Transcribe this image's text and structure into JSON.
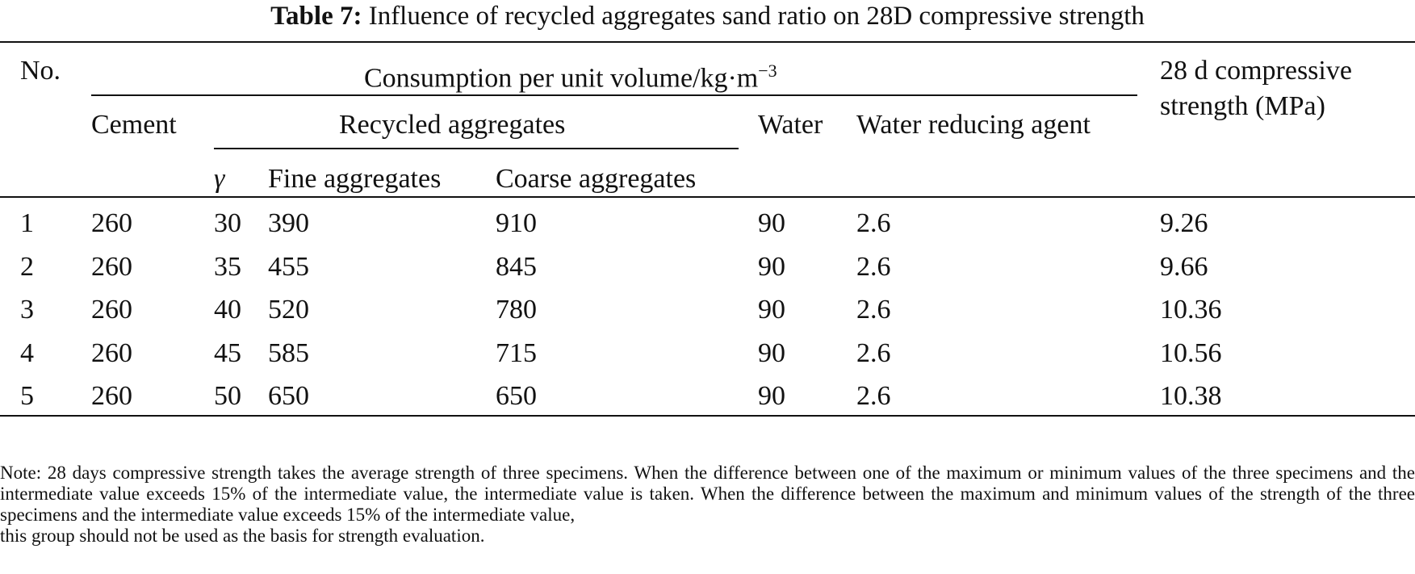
{
  "title": {
    "label": "Table 7:",
    "text": "Influence of recycled aggregates sand ratio on 28D compressive strength"
  },
  "headers": {
    "no": "No.",
    "consumption": "Consumption per unit volume/kg·m",
    "consumption_sup": "−3",
    "strength_line1": "28 d compressive",
    "strength_line2": "strength (MPa)",
    "cement": "Cement",
    "recycled": "Recycled aggregates",
    "water": "Water",
    "reducing": "Water reducing agent",
    "gamma": "γ",
    "fine": "Fine aggregates",
    "coarse": "Coarse aggregates"
  },
  "rows": [
    {
      "no": "1",
      "cement": "260",
      "gamma": "30",
      "fine": "390",
      "coarse": "910",
      "water": "90",
      "agent": "2.6",
      "strength": "9.26"
    },
    {
      "no": "2",
      "cement": "260",
      "gamma": "35",
      "fine": "455",
      "coarse": "845",
      "water": "90",
      "agent": "2.6",
      "strength": "9.66"
    },
    {
      "no": "3",
      "cement": "260",
      "gamma": "40",
      "fine": "520",
      "coarse": "780",
      "water": "90",
      "agent": "2.6",
      "strength": "10.36"
    },
    {
      "no": "4",
      "cement": "260",
      "gamma": "45",
      "fine": "585",
      "coarse": "715",
      "water": "90",
      "agent": "2.6",
      "strength": "10.56"
    },
    {
      "no": "5",
      "cement": "260",
      "gamma": "50",
      "fine": "650",
      "coarse": "650",
      "water": "90",
      "agent": "2.6",
      "strength": "10.38"
    }
  ],
  "note": "Note: 28 days compressive strength takes the average strength of three specimens. When the difference between one of the maximum or minimum values of the three specimens and the intermediate value exceeds 15% of the intermediate value, the intermediate value is taken. When the difference between the maximum and minimum values of the strength of the three specimens and the intermediate value exceeds 15% of the intermediate value,",
  "note_last": "this group should not be used as the basis for strength evaluation."
}
